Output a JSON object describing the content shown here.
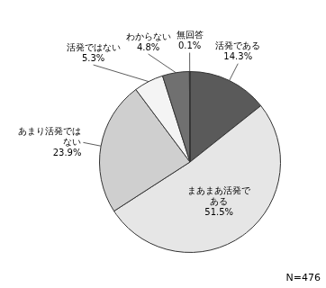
{
  "chart_data": {
    "type": "pie",
    "categories": [
      "活発である",
      "まあまあ活発である",
      "あまり活発ではない",
      "活発ではない",
      "わからない",
      "無回答"
    ],
    "values": [
      14.3,
      51.5,
      23.9,
      5.3,
      4.8,
      0.1
    ],
    "value_labels": [
      "14.3%",
      "51.5%",
      "23.9%",
      "5.3%",
      "4.8%",
      "0.1%"
    ],
    "colors": [
      "#5a5a5a",
      "#e6e6e6",
      "#cfcfcf",
      "#f4f4f4",
      "#707070",
      "#222222"
    ],
    "data_labels": true,
    "annotations": [
      "N=476"
    ]
  }
}
